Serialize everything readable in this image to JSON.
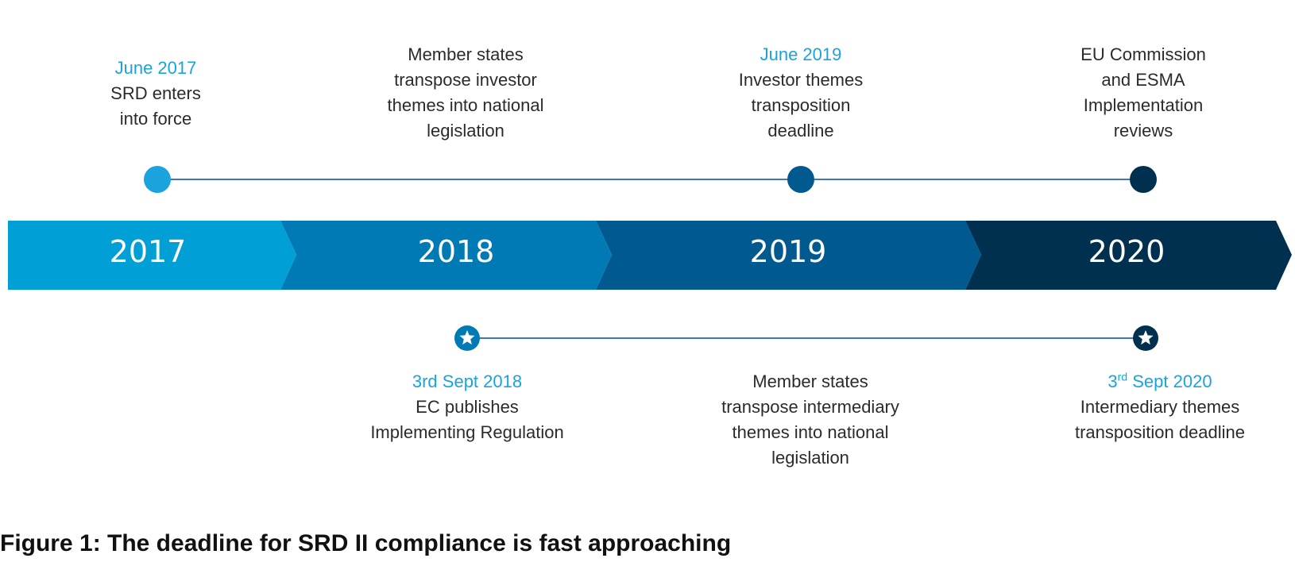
{
  "years": [
    "2017",
    "2018",
    "2019",
    "2020"
  ],
  "colors": {
    "band_2017": "#00a0d6",
    "band_2018": "#007ab5",
    "band_2019": "#005a8f",
    "band_2020": "#003050",
    "dot_2017": "#1aa3dc",
    "dot_2019": "#005a8f",
    "dot_2020": "#003050",
    "star_2018": "#007ab5",
    "star_2020": "#003050",
    "connector": "#3f72c8",
    "date_text": "#1aa3dc"
  },
  "top_events": [
    {
      "date": "June 2017",
      "lines": [
        "SRD enters",
        "into force"
      ]
    },
    {
      "date": "",
      "lines": [
        "Member states",
        "transpose investor",
        "themes into national",
        "legislation"
      ]
    },
    {
      "date": "June 2019",
      "lines": [
        "Investor themes",
        "transposition",
        "deadline"
      ]
    },
    {
      "date": "",
      "lines": [
        "EU Commission",
        "and ESMA",
        "Implementation",
        "reviews"
      ]
    }
  ],
  "bottom_events": [
    {
      "date": "3rd Sept 2018",
      "lines": [
        "EC publishes",
        "Implementing Regulation"
      ]
    },
    {
      "date": "",
      "lines": [
        "Member states",
        "transpose intermediary",
        "themes into national",
        "legislation"
      ]
    },
    {
      "date_num": "3",
      "date_sup": "rd",
      "date_rest": " Sept 2020",
      "lines": [
        "Intermediary themes",
        "transposition deadline"
      ]
    }
  ],
  "caption": "Figure 1: The deadline for SRD II compliance is fast approaching"
}
